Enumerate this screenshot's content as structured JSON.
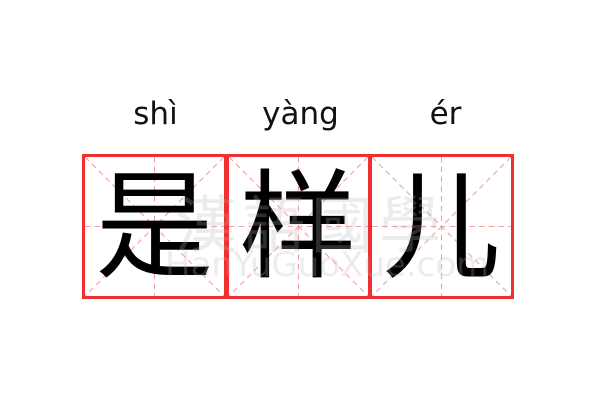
{
  "entries": [
    {
      "pinyin": "shì",
      "char": "是"
    },
    {
      "pinyin": "yàng",
      "char": "样"
    },
    {
      "pinyin": "ér",
      "char": "儿"
    }
  ],
  "watermark": {
    "cjk": "漢語國學",
    "latin": "HanYuGuoXue.com"
  },
  "colors": {
    "grid_border": "#f03030",
    "guide_lines": "#f5a0a0",
    "text": "#000000"
  }
}
